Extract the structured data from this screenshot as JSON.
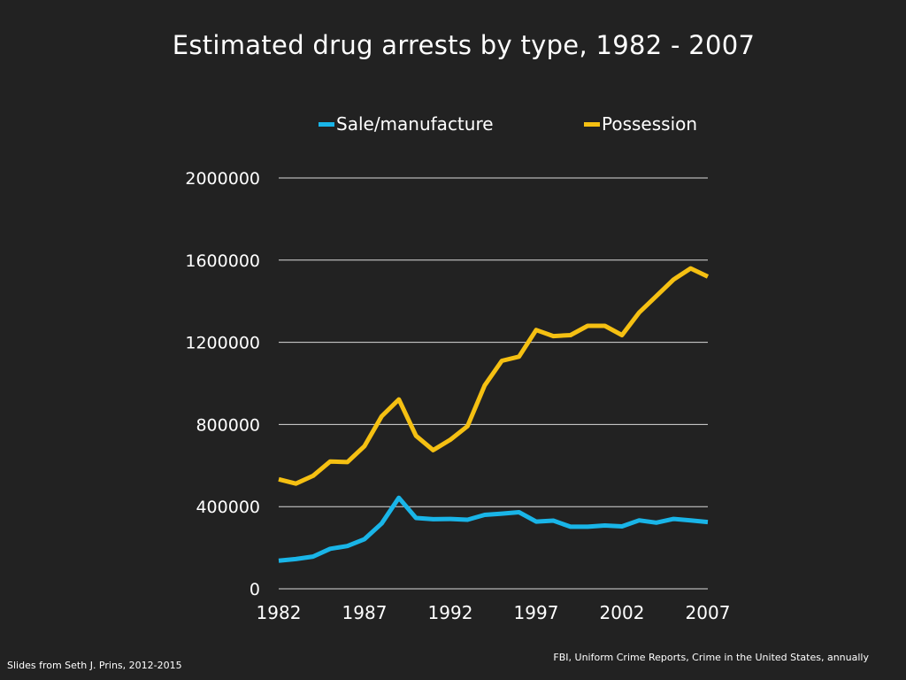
{
  "colors": {
    "background": "#222222",
    "text": "#ffffff",
    "grid": "#d9d9d9"
  },
  "chart_data": {
    "type": "line",
    "title": "Estimated drug arrests by type, 1982 - 2007",
    "xlabel": "",
    "ylabel": "",
    "xlim": [
      1982,
      2007
    ],
    "ylim": [
      0,
      2000000
    ],
    "yticks": [
      0,
      400000,
      800000,
      1200000,
      1600000,
      2000000
    ],
    "ytick_labels": [
      "0",
      "400000",
      "800000",
      "1200000",
      "1600000",
      "2000000"
    ],
    "xticks": [
      1982,
      1987,
      1992,
      1997,
      2002,
      2007
    ],
    "xtick_labels": [
      "1982",
      "1987",
      "1992",
      "1997",
      "2002",
      "2007"
    ],
    "grid": true,
    "legend_position": "top",
    "x": [
      1982,
      1983,
      1984,
      1985,
      1986,
      1987,
      1988,
      1989,
      1990,
      1991,
      1992,
      1993,
      1994,
      1995,
      1996,
      1997,
      1998,
      1999,
      2000,
      2001,
      2002,
      2003,
      2004,
      2005,
      2006,
      2007
    ],
    "series": [
      {
        "name": "Sale/manufacture",
        "color": "#19b5e8",
        "values": [
          137000,
          145000,
          157000,
          195000,
          208000,
          242000,
          318000,
          443000,
          345000,
          339000,
          340000,
          336000,
          360000,
          366000,
          373000,
          327000,
          332000,
          302000,
          302000,
          308000,
          304000,
          333000,
          322000,
          340000,
          333000,
          325000
        ]
      },
      {
        "name": "Possession",
        "color": "#f5c012",
        "values": [
          533000,
          512000,
          550000,
          620000,
          617000,
          695000,
          840000,
          922000,
          745000,
          675000,
          726000,
          792000,
          990000,
          1110000,
          1130000,
          1260000,
          1230000,
          1235000,
          1280000,
          1280000,
          1235000,
          1345000,
          1425000,
          1505000,
          1560000,
          1520000
        ]
      }
    ]
  },
  "footer": {
    "credit": "Slides from Seth J. Prins, 2012-2015",
    "source": "FBI, Uniform Crime Reports, Crime in the United States, annually"
  }
}
